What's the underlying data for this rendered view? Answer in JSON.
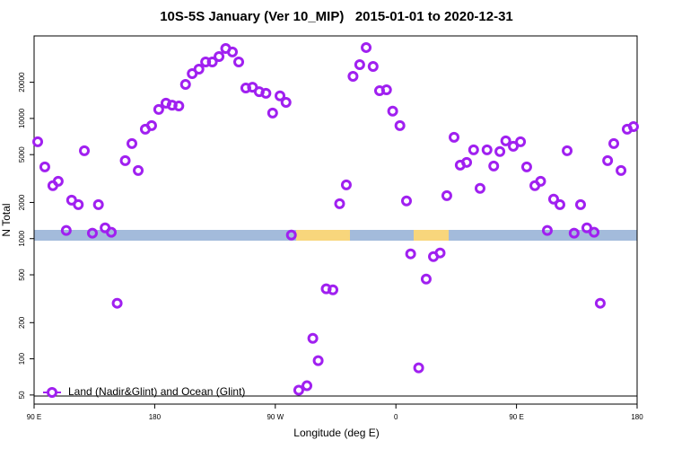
{
  "chart_data": {
    "type": "scatter",
    "title": "10S-5S January (Ver 10_MIP)   2015-01-01 to 2020-12-31",
    "x_label": "Longitude (deg E)",
    "y_label": "N Total",
    "log_y": true,
    "xlim": [
      90,
      540
    ],
    "xticks": [
      {
        "value": 90,
        "label": "90 E"
      },
      180,
      {
        "value": 270,
        "label": "90 W"
      },
      {
        "value": 360,
        "label": "0"
      },
      {
        "value": 450,
        "label": "90 E"
      },
      {
        "value": 540,
        "label": "180"
      }
    ],
    "ylim": [
      42,
      48600
    ],
    "yticks": [
      50,
      100,
      200,
      500,
      1000,
      2000,
      5000,
      10000,
      20000
    ],
    "legend_position": "bottom-left",
    "series": [
      {
        "name": "Land (Nadir&Glint) and Ocean (Glint)",
        "color": "#a020f0",
        "x": [
          92.7,
          98,
          104,
          108,
          114,
          118,
          123,
          127.5,
          133.5,
          138,
          143,
          147.6,
          152,
          158,
          163,
          167.7,
          173,
          177.7,
          183,
          188.4,
          193,
          198,
          203,
          208,
          213,
          218,
          223,
          228,
          233,
          238,
          242.7,
          248,
          253,
          258,
          263,
          268,
          273.5,
          278,
          282,
          287.5,
          293.6,
          298,
          302,
          308,
          313,
          318,
          323,
          328,
          333,
          337.8,
          343,
          347.8,
          353,
          357.6,
          363,
          367.9,
          371,
          377,
          382.6,
          388,
          393,
          398,
          403.4,
          408,
          412.8,
          418,
          422.8,
          428,
          433,
          437.6,
          442,
          447.6,
          453,
          457.6,
          463.7,
          468,
          473,
          477.7,
          482.4,
          487.8,
          493,
          497.8,
          502.5,
          507.9,
          512.5,
          518,
          522.6,
          528,
          532.6,
          537.3
        ],
        "values": [
          6400,
          3950,
          2760,
          3000,
          1170,
          2090,
          1920,
          5390,
          1110,
          1920,
          1230,
          1130,
          290,
          4460,
          6180,
          3690,
          8140,
          8720,
          11880,
          13400,
          12900,
          12700,
          19200,
          23600,
          25700,
          29500,
          29500,
          32700,
          38200,
          35700,
          29500,
          17900,
          18200,
          16700,
          16200,
          11100,
          15400,
          13600,
          1070,
          54.8,
          59.7,
          148,
          96.6,
          382,
          375,
          1950,
          2800,
          22400,
          28000,
          38900,
          27100,
          17000,
          17300,
          11500,
          8720,
          2060,
          747,
          84.2,
          461,
          709,
          760,
          2280,
          6970,
          4090,
          4310,
          5480,
          2620,
          5480,
          4020,
          5300,
          6510,
          5870,
          6400,
          3950,
          2760,
          3000,
          1170,
          2130,
          1920,
          5390,
          1110,
          1920,
          1230,
          1130,
          290,
          4460,
          6180,
          3690,
          8140,
          8550
        ]
      }
    ]
  }
}
